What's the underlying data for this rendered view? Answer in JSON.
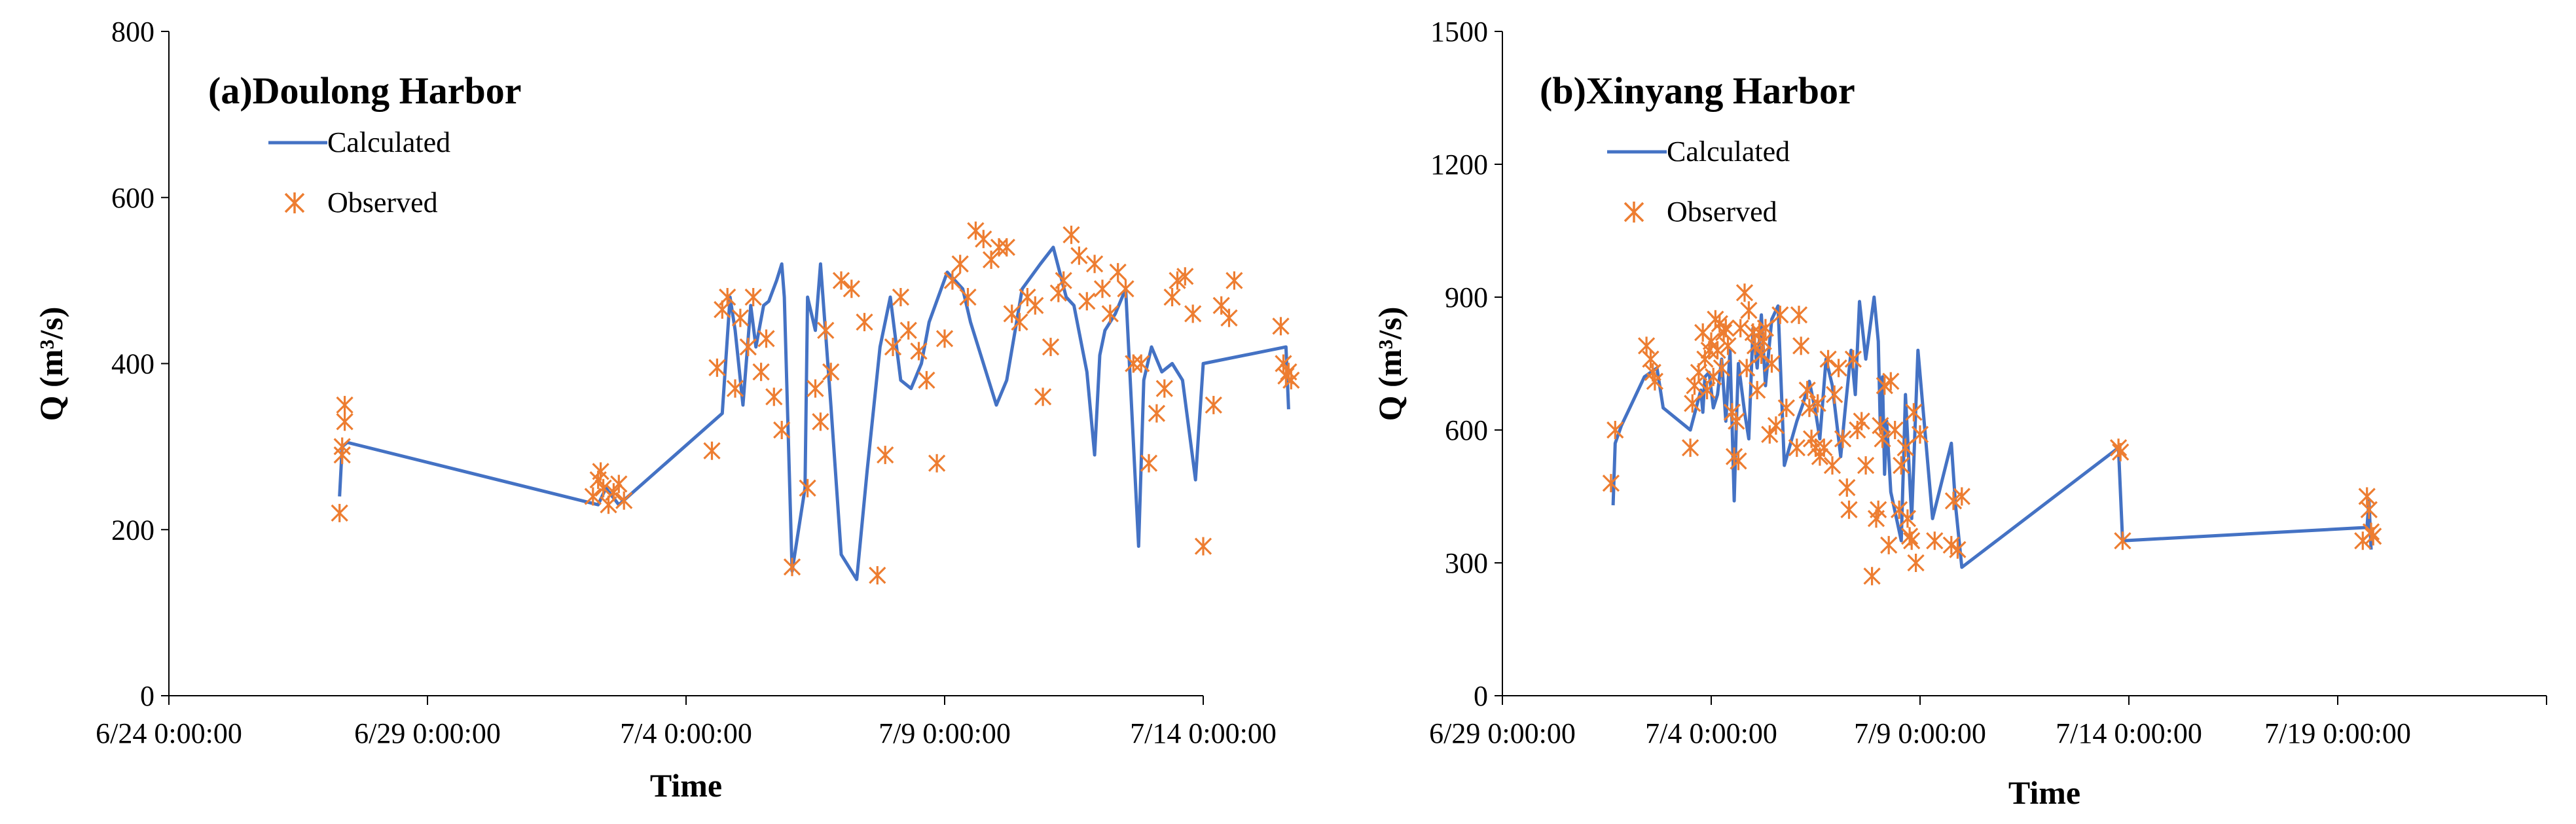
{
  "colors": {
    "calculated": "#4472C4",
    "observed": "#ED7D31",
    "axis": "#000000"
  },
  "chart_data": [
    {
      "type": "line",
      "title": "(a)Doulong Harbor",
      "xlabel": "Time",
      "ylabel": "Q (m³/s)",
      "ylim": [
        0,
        800
      ],
      "yticks": [
        0,
        200,
        400,
        600,
        800
      ],
      "ytick_labels": [
        "0",
        "200",
        "400",
        "600",
        "800"
      ],
      "xlim": [
        0,
        20
      ],
      "xticks": [
        0,
        5,
        10,
        15,
        20
      ],
      "xtick_labels": [
        "6/24 0:00:00",
        "6/29 0:00:00",
        "7/4 0:00:00",
        "7/9 0:00:00",
        "7/14 0:00:00"
      ],
      "x_unit": "days since 6/24 0:00",
      "legend": {
        "calculated": "Calculated",
        "observed": "Observed"
      },
      "series": [
        {
          "name": "Calculated",
          "style": "line",
          "x": [
            3.3,
            3.35,
            3.45,
            8.3,
            8.45,
            8.7,
            10.7,
            10.85,
            10.95,
            11.1,
            11.25,
            11.35,
            11.5,
            11.6,
            11.75,
            11.85,
            11.9,
            12.05,
            12.3,
            12.35,
            12.5,
            12.6,
            12.8,
            13.0,
            13.3,
            13.5,
            13.75,
            13.95,
            14.15,
            14.35,
            14.55,
            14.7,
            15.05,
            15.35,
            15.5,
            15.7,
            16.0,
            16.2,
            16.5,
            16.85,
            17.1,
            17.35,
            17.5,
            17.75,
            17.9,
            18.0,
            18.1,
            18.3,
            18.5,
            18.75,
            18.85,
            19.0,
            19.2,
            19.4,
            19.6,
            19.85,
            20.0,
            21.6,
            21.65
          ],
          "y": [
            240,
            300,
            305,
            230,
            250,
            230,
            340,
            480,
            440,
            350,
            470,
            420,
            470,
            475,
            500,
            520,
            480,
            150,
            250,
            480,
            440,
            520,
            350,
            170,
            140,
            270,
            420,
            480,
            380,
            370,
            400,
            450,
            510,
            490,
            450,
            410,
            350,
            380,
            490,
            520,
            540,
            480,
            470,
            390,
            290,
            410,
            440,
            460,
            490,
            180,
            380,
            420,
            390,
            400,
            380,
            260,
            400,
            420,
            345
          ]
        },
        {
          "name": "Observed",
          "style": "marker",
          "x": [
            3.3,
            3.35,
            3.35,
            3.4,
            3.4,
            8.2,
            8.3,
            8.35,
            8.4,
            8.5,
            8.6,
            8.7,
            8.8,
            10.5,
            10.6,
            10.7,
            10.8,
            10.95,
            11.05,
            11.2,
            11.3,
            11.45,
            11.55,
            11.7,
            11.85,
            12.05,
            12.35,
            12.5,
            12.6,
            12.7,
            12.8,
            13.0,
            13.2,
            13.45,
            13.7,
            13.85,
            14.0,
            14.15,
            14.3,
            14.5,
            14.65,
            14.85,
            15.0,
            15.15,
            15.3,
            15.45,
            15.6,
            15.75,
            15.9,
            16.05,
            16.2,
            16.3,
            16.45,
            16.6,
            16.75,
            16.9,
            17.05,
            17.2,
            17.3,
            17.45,
            17.6,
            17.75,
            17.9,
            18.05,
            18.2,
            18.35,
            18.5,
            18.65,
            18.8,
            18.95,
            19.1,
            19.25,
            19.4,
            19.5,
            19.65,
            19.8,
            20.0,
            20.2,
            20.35,
            20.5,
            20.6,
            21.5,
            21.55,
            21.6,
            21.65,
            21.7
          ],
          "y": [
            220,
            290,
            300,
            330,
            350,
            240,
            260,
            270,
            250,
            230,
            245,
            255,
            235,
            295,
            395,
            465,
            480,
            370,
            455,
            420,
            480,
            390,
            430,
            360,
            320,
            155,
            250,
            370,
            330,
            440,
            390,
            500,
            490,
            450,
            145,
            290,
            420,
            480,
            440,
            415,
            380,
            280,
            430,
            500,
            520,
            480,
            560,
            550,
            525,
            540,
            540,
            460,
            450,
            480,
            470,
            360,
            420,
            485,
            500,
            555,
            530,
            475,
            520,
            490,
            460,
            510,
            490,
            400,
            400,
            280,
            340,
            370,
            480,
            500,
            505,
            460,
            180,
            350,
            470,
            455,
            500,
            445,
            400,
            385,
            390,
            380
          ]
        }
      ]
    },
    {
      "type": "line",
      "title": "(b)Xinyang Harbor",
      "xlabel": "Time",
      "ylabel": "Q (m³/s)",
      "ylim": [
        0,
        1500
      ],
      "yticks": [
        0,
        300,
        600,
        900,
        1200,
        1500
      ],
      "ytick_labels": [
        "0",
        "300",
        "600",
        "900",
        "1200",
        "1500"
      ],
      "xlim": [
        0,
        25
      ],
      "xticks": [
        0,
        5,
        10,
        15,
        20,
        25
      ],
      "xtick_labels": [
        "6/29 0:00:00",
        "7/4 0:00:00",
        "7/9 0:00:00",
        "7/14 0:00:00",
        "7/19 0:00:00",
        ""
      ],
      "x_unit": "days since 6/29 0:00",
      "legend": {
        "calculated": "Calculated",
        "observed": "Observed"
      },
      "series": [
        {
          "name": "Calculated",
          "style": "line",
          "x": [
            2.65,
            2.7,
            2.85,
            3.0,
            3.4,
            3.7,
            3.85,
            4.5,
            4.75,
            4.8,
            4.85,
            4.95,
            5.05,
            5.15,
            5.25,
            5.35,
            5.45,
            5.55,
            5.6,
            5.65,
            5.8,
            5.9,
            6.0,
            6.1,
            6.2,
            6.3,
            6.45,
            6.6,
            6.75,
            6.9,
            7.05,
            7.2,
            7.35,
            7.5,
            7.6,
            7.75,
            7.9,
            8.1,
            8.2,
            8.35,
            8.45,
            8.55,
            8.7,
            8.9,
            9.0,
            9.05,
            9.1,
            9.15,
            9.2,
            9.3,
            9.55,
            9.65,
            9.8,
            9.95,
            10.3,
            10.75,
            10.85,
            11.0,
            14.75,
            14.85,
            20.7,
            20.75,
            20.8
          ],
          "y": [
            430,
            570,
            610,
            640,
            720,
            740,
            650,
            600,
            690,
            640,
            720,
            730,
            650,
            680,
            760,
            620,
            780,
            440,
            610,
            750,
            640,
            580,
            830,
            740,
            860,
            700,
            850,
            880,
            520,
            570,
            620,
            660,
            710,
            640,
            580,
            760,
            700,
            540,
            640,
            780,
            680,
            890,
            760,
            900,
            800,
            600,
            720,
            500,
            620,
            460,
            350,
            680,
            400,
            780,
            400,
            570,
            430,
            290,
            560,
            350,
            380,
            440,
            330
          ]
        },
        {
          "name": "Observed",
          "style": "marker",
          "x": [
            2.6,
            2.7,
            3.45,
            3.55,
            3.6,
            3.65,
            4.5,
            4.55,
            4.6,
            4.7,
            4.8,
            4.85,
            4.9,
            4.95,
            5.0,
            5.05,
            5.1,
            5.15,
            5.2,
            5.25,
            5.3,
            5.35,
            5.4,
            5.5,
            5.55,
            5.6,
            5.65,
            5.7,
            5.8,
            5.85,
            5.9,
            6.0,
            6.05,
            6.1,
            6.15,
            6.2,
            6.25,
            6.3,
            6.4,
            6.45,
            6.55,
            6.65,
            6.8,
            7.05,
            7.1,
            7.15,
            7.3,
            7.35,
            7.4,
            7.5,
            7.55,
            7.6,
            7.7,
            7.8,
            7.9,
            7.95,
            8.05,
            8.15,
            8.25,
            8.3,
            8.4,
            8.5,
            8.6,
            8.7,
            8.85,
            8.95,
            9.0,
            9.05,
            9.1,
            9.15,
            9.25,
            9.3,
            9.4,
            9.5,
            9.55,
            9.65,
            9.7,
            9.75,
            9.8,
            9.85,
            9.9,
            10.0,
            10.35,
            10.75,
            10.8,
            10.9,
            11.0,
            14.75,
            14.8,
            14.85,
            20.6,
            20.7,
            20.75,
            20.8,
            20.85
          ],
          "y": [
            480,
            600,
            790,
            760,
            730,
            710,
            560,
            660,
            700,
            730,
            820,
            760,
            690,
            780,
            800,
            720,
            850,
            780,
            840,
            740,
            820,
            830,
            790,
            640,
            540,
            620,
            530,
            830,
            910,
            740,
            870,
            820,
            790,
            690,
            820,
            770,
            800,
            830,
            590,
            750,
            610,
            860,
            650,
            560,
            860,
            790,
            690,
            650,
            580,
            560,
            660,
            540,
            560,
            760,
            520,
            680,
            740,
            580,
            470,
            420,
            760,
            600,
            620,
            520,
            270,
            400,
            420,
            610,
            580,
            700,
            340,
            710,
            600,
            420,
            520,
            560,
            400,
            360,
            350,
            640,
            300,
            590,
            350,
            340,
            440,
            330,
            450,
            560,
            550,
            350,
            350,
            450,
            420,
            370,
            360
          ]
        }
      ]
    }
  ]
}
